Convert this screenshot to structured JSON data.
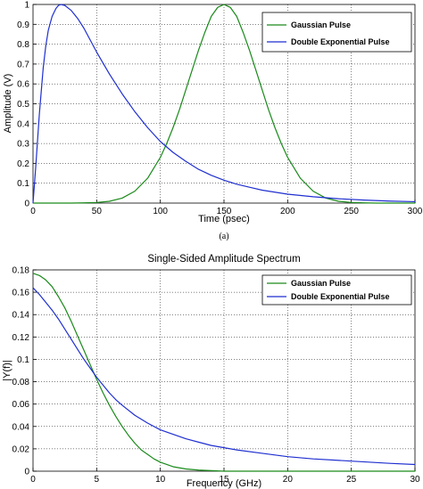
{
  "chart_data": [
    {
      "type": "line",
      "title": "",
      "xlabel": "Time (psec)",
      "ylabel": "Amplitude (V)",
      "xlim": [
        0,
        300
      ],
      "ylim": [
        0,
        1
      ],
      "xticks": [
        "0",
        "50",
        "100",
        "150",
        "200",
        "250",
        "300"
      ],
      "yticks": [
        "0",
        "0.1",
        "0.2",
        "0.3",
        "0.4",
        "0.5",
        "0.6",
        "0.7",
        "0.8",
        "0.9",
        "1"
      ],
      "grid": true,
      "legend_position": "top-right",
      "caption": "(a)",
      "series": [
        {
          "name": "Gaussian Pulse",
          "color": "#1a8a1a",
          "x": [
            0,
            10,
            20,
            30,
            40,
            50,
            60,
            70,
            80,
            90,
            100,
            105,
            110,
            115,
            120,
            125,
            130,
            135,
            140,
            145,
            150,
            155,
            160,
            165,
            170,
            175,
            180,
            185,
            190,
            195,
            200,
            210,
            220,
            230,
            240,
            250,
            260,
            270,
            280,
            290,
            300
          ],
          "y": [
            0,
            0,
            0,
            0,
            0.001,
            0.003,
            0.009,
            0.025,
            0.06,
            0.125,
            0.23,
            0.3,
            0.38,
            0.47,
            0.57,
            0.67,
            0.77,
            0.86,
            0.94,
            0.985,
            1.0,
            0.985,
            0.94,
            0.86,
            0.77,
            0.67,
            0.57,
            0.47,
            0.38,
            0.3,
            0.23,
            0.125,
            0.06,
            0.025,
            0.009,
            0.003,
            0.001,
            0,
            0,
            0,
            0
          ]
        },
        {
          "name": "Double Exponential Pulse",
          "color": "#1f2fd0",
          "x": [
            0,
            2,
            5,
            8,
            10,
            12,
            15,
            18,
            20,
            22,
            25,
            30,
            35,
            40,
            45,
            50,
            60,
            70,
            80,
            90,
            100,
            110,
            120,
            130,
            140,
            150,
            160,
            170,
            180,
            200,
            220,
            240,
            260,
            280,
            300
          ],
          "y": [
            0,
            0.17,
            0.45,
            0.68,
            0.79,
            0.87,
            0.94,
            0.98,
            0.995,
            1.0,
            0.995,
            0.97,
            0.93,
            0.88,
            0.82,
            0.76,
            0.65,
            0.55,
            0.46,
            0.38,
            0.31,
            0.255,
            0.21,
            0.17,
            0.14,
            0.115,
            0.095,
            0.08,
            0.065,
            0.045,
            0.032,
            0.022,
            0.015,
            0.01,
            0.007
          ]
        }
      ]
    },
    {
      "type": "line",
      "title": "Single-Sided Amplitude Spectrum",
      "xlabel": "Frequency (GHz)",
      "ylabel": "|Y(f)|",
      "xlim": [
        0,
        30
      ],
      "ylim": [
        0,
        0.18
      ],
      "xticks": [
        "0",
        "5",
        "10",
        "15",
        "20",
        "25",
        "30"
      ],
      "yticks": [
        "0",
        "0.02",
        "0.04",
        "0.06",
        "0.08",
        "0.1",
        "0.12",
        "0.14",
        "0.16",
        "0.18"
      ],
      "grid": true,
      "legend_position": "top-right",
      "series": [
        {
          "name": "Gaussian Pulse",
          "color": "#1a8a1a",
          "x": [
            0,
            0.5,
            1,
            1.5,
            2,
            2.5,
            3,
            3.5,
            4,
            4.5,
            5,
            5.5,
            6,
            6.5,
            7,
            7.5,
            8,
            8.5,
            9,
            9.5,
            10,
            11,
            12,
            13,
            14,
            15,
            16,
            18,
            20,
            25,
            30
          ],
          "y": [
            0.177,
            0.175,
            0.171,
            0.165,
            0.156,
            0.146,
            0.134,
            0.121,
            0.108,
            0.095,
            0.082,
            0.07,
            0.059,
            0.049,
            0.04,
            0.032,
            0.025,
            0.019,
            0.015,
            0.011,
            0.008,
            0.004,
            0.002,
            0.001,
            0.0005,
            0,
            0,
            0,
            0,
            0,
            0
          ]
        },
        {
          "name": "Double Exponential Pulse",
          "color": "#1f2fd0",
          "x": [
            0,
            0.5,
            1,
            1.5,
            2,
            2.5,
            3,
            3.5,
            4,
            4.5,
            5,
            5.5,
            6,
            6.5,
            7,
            8,
            9,
            10,
            11,
            12,
            13,
            14,
            15,
            16,
            18,
            20,
            22,
            25,
            28,
            30
          ],
          "y": [
            0.164,
            0.158,
            0.151,
            0.144,
            0.136,
            0.127,
            0.118,
            0.109,
            0.1,
            0.092,
            0.084,
            0.077,
            0.07,
            0.064,
            0.059,
            0.05,
            0.043,
            0.037,
            0.033,
            0.029,
            0.026,
            0.023,
            0.021,
            0.019,
            0.016,
            0.013,
            0.011,
            0.009,
            0.007,
            0.006
          ]
        }
      ]
    }
  ]
}
